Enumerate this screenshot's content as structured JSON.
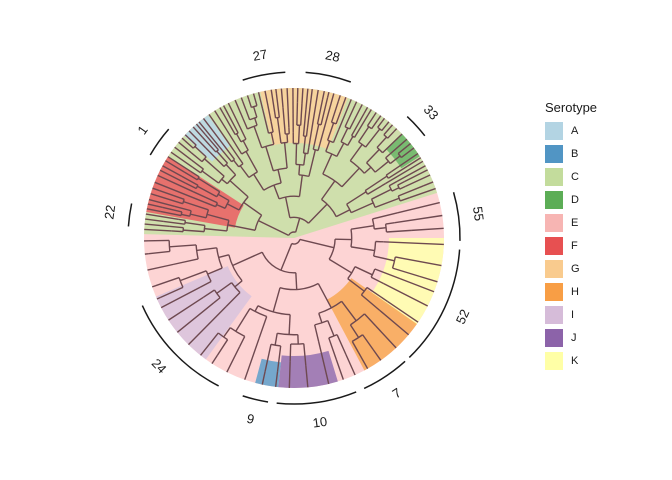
{
  "legend": {
    "title": "Serotype",
    "items": [
      {
        "label": "A",
        "color": "#b3d4e3"
      },
      {
        "label": "B",
        "color": "#5195c4"
      },
      {
        "label": "C",
        "color": "#c3dc9c"
      },
      {
        "label": "D",
        "color": "#5cad56"
      },
      {
        "label": "E",
        "color": "#f7b5b3"
      },
      {
        "label": "F",
        "color": "#e75051"
      },
      {
        "label": "G",
        "color": "#f9cb8e"
      },
      {
        "label": "H",
        "color": "#f89e45"
      },
      {
        "label": "I",
        "color": "#d6bcd9"
      },
      {
        "label": "J",
        "color": "#8c63a9"
      },
      {
        "label": "K",
        "color": "#ffffa6"
      }
    ]
  },
  "background_color": "#fdcfce",
  "branch_color": "#6e4950",
  "clade_color": "#1a1a1a",
  "clades": [
    {
      "label": "27",
      "start_deg": -108,
      "end_deg": -93
    },
    {
      "label": "28",
      "start_deg": -86,
      "end_deg": -70
    },
    {
      "label": "33",
      "start_deg": -47,
      "end_deg": -38
    },
    {
      "label": "55",
      "start_deg": -16,
      "end_deg": 1
    },
    {
      "label": "52",
      "start_deg": 4,
      "end_deg": 46
    },
    {
      "label": "7",
      "start_deg": 48,
      "end_deg": 65
    },
    {
      "label": "10",
      "start_deg": 68,
      "end_deg": 96
    },
    {
      "label": "9",
      "start_deg": 99,
      "end_deg": 108
    },
    {
      "label": "24",
      "start_deg": 117,
      "end_deg": 156
    },
    {
      "label": "22",
      "start_deg": 184,
      "end_deg": 192
    },
    {
      "label": "1",
      "start_deg": 210,
      "end_deg": 221
    }
  ],
  "highlights": [
    {
      "serotype": "C",
      "start_deg": -178.5,
      "end_deg": -17.5,
      "rin": 0,
      "color": "#c3dc9c"
    },
    {
      "serotype": "F",
      "start_deg": -170,
      "end_deg": -147,
      "rin": 60,
      "color": "#e75051"
    },
    {
      "serotype": "A",
      "start_deg": -137,
      "end_deg": -125,
      "rin": 112,
      "color": "#b3d4e3"
    },
    {
      "serotype": "G",
      "start_deg": -103,
      "end_deg": -69,
      "rin": 95,
      "color": "#f9cb8e"
    },
    {
      "serotype": "D",
      "start_deg": -44,
      "end_deg": -33,
      "rin": 128,
      "color": "#5cad56"
    },
    {
      "serotype": "K",
      "start_deg": 0,
      "end_deg": 36,
      "rin": 95,
      "color": "#ffffa6"
    },
    {
      "serotype": "H",
      "start_deg": 35,
      "end_deg": 62,
      "rin": 70,
      "color": "#f89e45"
    },
    {
      "serotype": "J",
      "start_deg": 73,
      "end_deg": 96,
      "rin": 118,
      "color": "#8c63a9"
    },
    {
      "serotype": "B",
      "start_deg": 96,
      "end_deg": 105,
      "rin": 125,
      "color": "#5195c4"
    },
    {
      "serotype": "I",
      "start_deg": 126,
      "end_deg": 157,
      "rin": 72,
      "color": "#d6bcd9"
    }
  ]
}
